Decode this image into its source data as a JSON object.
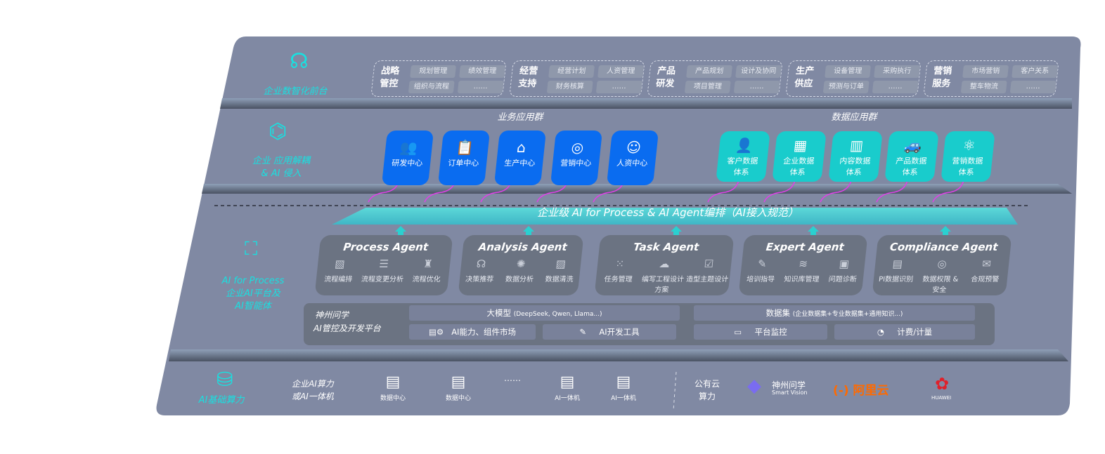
{
  "layers": {
    "frontend": {
      "label": "企业数智化前台",
      "icon": "brain-icon",
      "groups": [
        {
          "title": "战略管控",
          "items": [
            "规划管理",
            "绩效管理",
            "组织与流程",
            "……"
          ]
        },
        {
          "title": "经营支持",
          "items": [
            "经营计划",
            "人资管理",
            "财务核算",
            "……"
          ]
        },
        {
          "title": "产品研发",
          "items": [
            "产品规划",
            "设计及协同",
            "项目管理",
            "……"
          ]
        },
        {
          "title": "生产供应",
          "items": [
            "设备管理",
            "采购执行",
            "预测与订单",
            "……"
          ]
        },
        {
          "title": "营销服务",
          "items": [
            "市场营销",
            "客户关系",
            "整车物流",
            "……"
          ]
        }
      ]
    },
    "apps": {
      "label_line1": "企业 应用解耦",
      "label_line2": "& AI 侵入",
      "icon": "molecule-icon",
      "business_title": "业务应用群",
      "business": [
        {
          "label": "研发中心",
          "icon": "users-icon"
        },
        {
          "label": "订单中心",
          "icon": "clipboard-icon"
        },
        {
          "label": "生产中心",
          "icon": "factory-icon"
        },
        {
          "label": "营销中心",
          "icon": "target-icon"
        },
        {
          "label": "人资中心",
          "icon": "person-icon"
        }
      ],
      "data_title": "数据应用群",
      "data": [
        {
          "label1": "客户数据",
          "label2": "体系",
          "icon": "user-icon"
        },
        {
          "label1": "企业数据",
          "label2": "体系",
          "icon": "building-icon"
        },
        {
          "label1": "内容数据",
          "label2": "体系",
          "icon": "books-icon"
        },
        {
          "label1": "产品数据",
          "label2": "体系",
          "icon": "car-icon"
        },
        {
          "label1": "营销数据",
          "label2": "体系",
          "icon": "atom-icon"
        }
      ]
    },
    "ai": {
      "label_line1": "AI for Process",
      "label_line2": "企业AI平台及",
      "label_line3": "AI智能体",
      "icon": "face-scan-icon",
      "band": "企业级 AI for Process & AI Agent编排（AI接入规范）",
      "agents": [
        {
          "title": "Process Agent",
          "items": [
            "流程编排",
            "流程变更分析",
            "流程优化"
          ]
        },
        {
          "title": "Analysis Agent",
          "items": [
            "决策推荐",
            "数据分析",
            "数据清洗"
          ]
        },
        {
          "title": "Task Agent",
          "items": [
            "任务管理",
            "编写工程设计方案",
            "造型主题设计"
          ]
        },
        {
          "title": "Expert Agent",
          "items": [
            "培训指导",
            "知识库管理",
            "问题诊断"
          ]
        },
        {
          "title": "Compliance Agent",
          "items": [
            "PI数据识别",
            "数据权限 & 安全",
            "合规预警"
          ]
        }
      ],
      "platform": {
        "name_line1": "神州问学",
        "name_line2": "AI管控及开发平台",
        "model": "大模型",
        "model_note": "(DeepSeek, Qwen, Llama...)",
        "dataset": "数据集",
        "dataset_note": "(企业数据集+专业数据集+通用知识...)",
        "tools": [
          "AI能力、组件市场",
          "AI开发工具",
          "平台监控",
          "计费/计量"
        ]
      }
    },
    "infra": {
      "label": "AI基础算力",
      "icon": "database-icon",
      "private_line1": "企业AI算力",
      "private_line2": "或AI一体机",
      "servers": [
        "数据中心",
        "数据中心",
        "……",
        "AI一体机",
        "AI一体机"
      ],
      "public_line1": "公有云",
      "public_line2": "算力",
      "vendors": [
        {
          "name": "神州问学",
          "sub": "Smart Vision"
        },
        {
          "name": "阿里云"
        },
        {
          "name": "HUAWEI"
        }
      ]
    }
  },
  "colors": {
    "panel": "#8089a3",
    "accent": "#19e0e0",
    "blue": "#0a6cf0",
    "teal": "#19cccc",
    "arrow": "#e040e8",
    "aliyun": "#ff6a00",
    "huawei": "#e0202a"
  }
}
